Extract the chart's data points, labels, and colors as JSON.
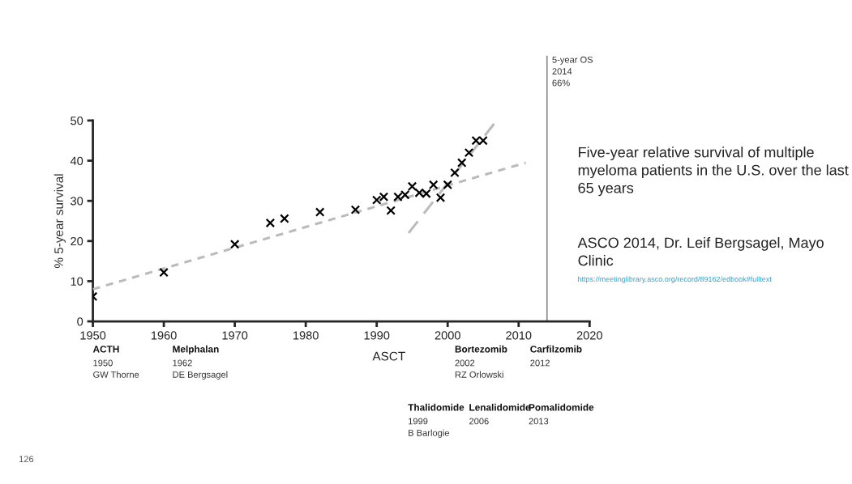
{
  "chart_data": {
    "type": "scatter",
    "ylabel": "% 5-year survival",
    "xlim": [
      1950,
      2020
    ],
    "xticks": [
      1950,
      1960,
      1970,
      1980,
      1990,
      2000,
      2010,
      2020
    ],
    "ylim": [
      0,
      50
    ],
    "yticks": [
      0,
      10,
      20,
      30,
      40,
      50
    ],
    "grid": false,
    "legend": false,
    "marker": "cross",
    "x": [
      1950,
      1960,
      1970,
      1975,
      1977,
      1982,
      1987,
      1990,
      1991,
      1992,
      1993,
      1994,
      1995,
      1996,
      1997,
      1998,
      1999,
      2000,
      2001,
      2002,
      2003,
      2004,
      2005
    ],
    "series": [
      {
        "color": "#000000",
        "values": [
          6.2,
          12.2,
          19.2,
          24.5,
          25.6,
          27.2,
          27.8,
          30.2,
          31,
          27.6,
          31,
          31.5,
          33.6,
          32,
          31.8,
          34,
          30.8,
          34,
          37,
          39.5,
          42,
          45,
          45
        ]
      },
      {
        "type": "line",
        "color": "#bbbbbb",
        "line_style": "dotted",
        "marker": "none",
        "x": [
          1950,
          2011
        ],
        "values": [
          8,
          39.5
        ]
      },
      {
        "type": "line",
        "color": "#bbbbbb",
        "line_style": "dashed",
        "marker": "none",
        "x": [
          1994.5,
          2006.9
        ],
        "values": [
          22,
          50
        ]
      }
    ],
    "ref_lines": [
      {
        "axis": "x",
        "value": 2014,
        "label": "5-year OS\n2014\n66%",
        "color": "#888888"
      }
    ],
    "annotations": [
      "ACTH\n1950\nGW Thorne",
      "Melphalan\n1962\nDE Bergsagel",
      "ASCT",
      "Thalidomide\n1999\nB Barlogie",
      "Bortezomib\n2002\nRZ Orlowski",
      "Lenalidomide\n2006",
      "Carfilzomib\n2012",
      "Pomalidomide\n2013",
      "Five-year relative survival of multiple myeloma patients in the U.S. over the last 65 years",
      "ASCO 2014, Dr. Leif Bergsagel, Mayo Clinic",
      "https://meetinglibrary.asco.org/record/89162/edbook#fulltext",
      "126"
    ]
  }
}
